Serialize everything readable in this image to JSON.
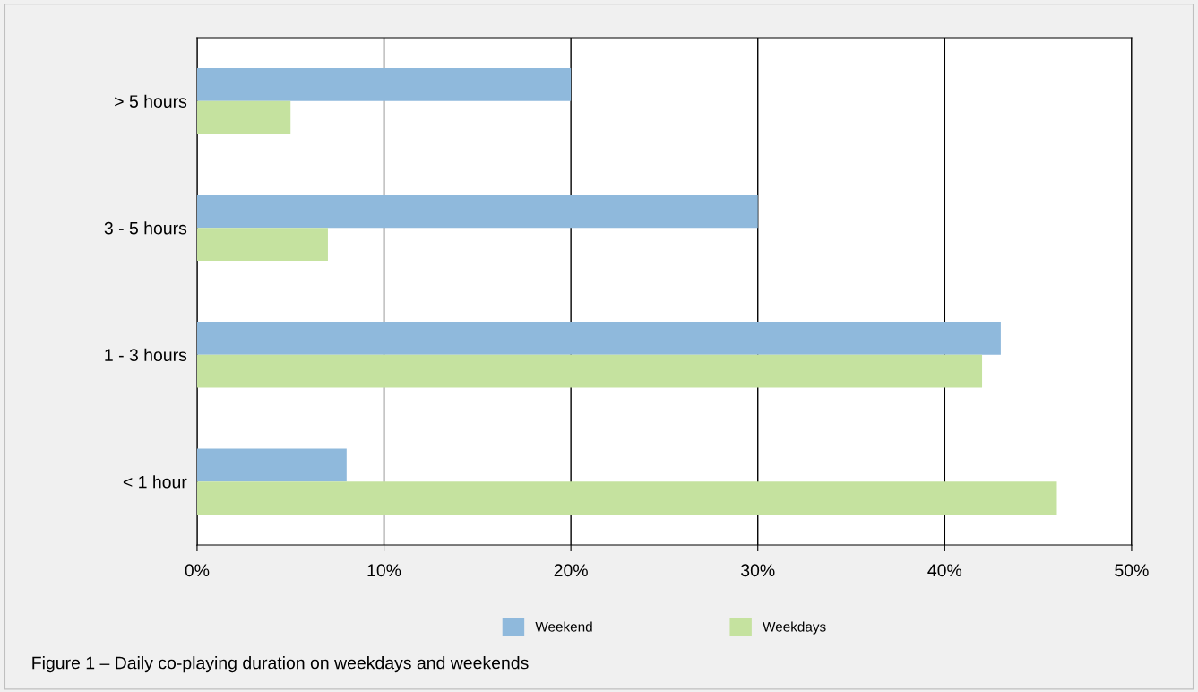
{
  "chart_data": {
    "type": "bar",
    "orientation": "horizontal",
    "categories": [
      "> 5 hours",
      "3 - 5 hours",
      "1 - 3 hours",
      "< 1 hour"
    ],
    "series": [
      {
        "name": "Weekend",
        "color": "#8fb9dc",
        "values": [
          20,
          30,
          43,
          8
        ]
      },
      {
        "name": "Weekdays",
        "color": "#c5e29f",
        "values": [
          5,
          7,
          42,
          46
        ]
      }
    ],
    "xlim": [
      0,
      50
    ],
    "xticks": [
      {
        "value": 0,
        "label": "0%"
      },
      {
        "value": 10,
        "label": "10%"
      },
      {
        "value": 20,
        "label": "20%"
      },
      {
        "value": 30,
        "label": "30%"
      },
      {
        "value": 40,
        "label": "40%"
      },
      {
        "value": 50,
        "label": "50%"
      }
    ],
    "grid": "x",
    "legend": "bottom",
    "annotations": [
      "Figure 1 – Daily co-playing duration on weekdays and weekends"
    ]
  }
}
